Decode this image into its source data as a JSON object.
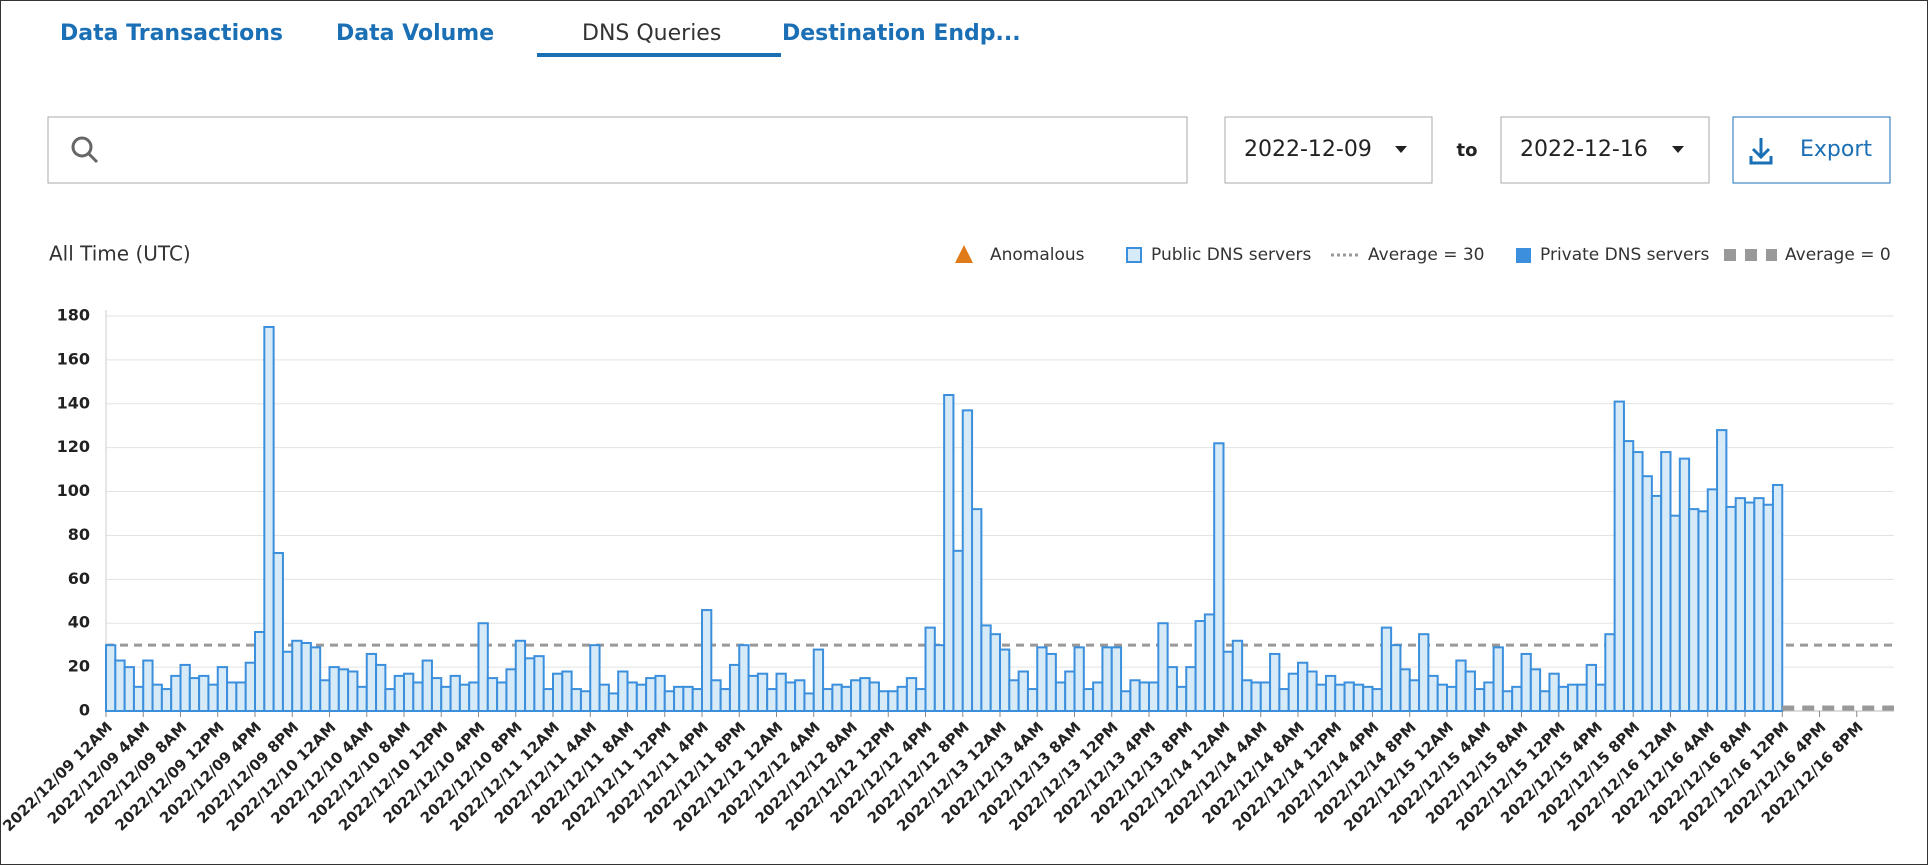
{
  "tabs": [
    "Data Transactions",
    "Data Volume",
    "DNS Queries",
    "Destination Endp..."
  ],
  "date_from": "2022-12-09",
  "separator": "to",
  "date_to": "2022-12-16",
  "export": "Export",
  "chart_data": {
    "type": "bar",
    "subtitle": "All Time (UTC)",
    "legend_anomalous": "Anomalous",
    "series": [
      {
        "name": "Public DNS servers",
        "color": "#3b8fdc",
        "fill": "#d6eaf8",
        "average": 30,
        "average_label": "Average = 30",
        "values": [
          30,
          23,
          20,
          11,
          23,
          12,
          10,
          16,
          21,
          15,
          16,
          12,
          20,
          13,
          13,
          22,
          36,
          175,
          72,
          27,
          32,
          31,
          29,
          14,
          20,
          19,
          18,
          11,
          26,
          21,
          10,
          16,
          17,
          13,
          23,
          15,
          11,
          16,
          12,
          13,
          40,
          15,
          13,
          19,
          32,
          24,
          25,
          10,
          17,
          18,
          10,
          9,
          30,
          12,
          8,
          18,
          13,
          12,
          15,
          16,
          9,
          11,
          11,
          10,
          46,
          14,
          10,
          21,
          30,
          16,
          17,
          10,
          17,
          13,
          14,
          8,
          28,
          10,
          12,
          11,
          14,
          15,
          13,
          9,
          9,
          11,
          15,
          10,
          38,
          30,
          144,
          73,
          137,
          92,
          39,
          35,
          28,
          14,
          18,
          10,
          29,
          26,
          13,
          18,
          29,
          10,
          13,
          29,
          29,
          9,
          14,
          13,
          13,
          40,
          20,
          11,
          20,
          41,
          44,
          122,
          27,
          32,
          14,
          13,
          13,
          26,
          10,
          17,
          22,
          18,
          12,
          16,
          12,
          13,
          12,
          11,
          10,
          38,
          30,
          19,
          14,
          35,
          16,
          12,
          11,
          23,
          18,
          10,
          13,
          29,
          9,
          11,
          26,
          19,
          9,
          17,
          11,
          12,
          12,
          21,
          12,
          35,
          141,
          123,
          118,
          107,
          98,
          118,
          89,
          115,
          92,
          91,
          101,
          128,
          93,
          97,
          95,
          97,
          94,
          103,
          null,
          null,
          null,
          null,
          null,
          null,
          null,
          null,
          null,
          null,
          null,
          null
        ]
      },
      {
        "name": "Private DNS servers",
        "color": "#3b8fdc",
        "average": 0,
        "average_label": "Average = 0"
      }
    ],
    "categories": [
      "2022/12/09 12AM",
      null,
      null,
      null,
      "2022/12/09 4AM",
      null,
      null,
      null,
      "2022/12/09 8AM",
      null,
      null,
      null,
      "2022/12/09 12PM",
      null,
      null,
      null,
      "2022/12/09 4PM",
      null,
      null,
      null,
      "2022/12/09 8PM",
      null,
      null,
      null,
      "2022/12/10 12AM",
      null,
      null,
      null,
      "2022/12/10 4AM",
      null,
      null,
      null,
      "2022/12/10 8AM",
      null,
      null,
      null,
      "2022/12/10 12PM",
      null,
      null,
      null,
      "2022/12/10 4PM",
      null,
      null,
      null,
      "2022/12/10 8PM",
      null,
      null,
      null,
      "2022/12/11 12AM",
      null,
      null,
      null,
      "2022/12/11 4AM",
      null,
      null,
      null,
      "2022/12/11 8AM",
      null,
      null,
      null,
      "2022/12/11 12PM",
      null,
      null,
      null,
      "2022/12/11 4PM",
      null,
      null,
      null,
      "2022/12/11 8PM",
      null,
      null,
      null,
      "2022/12/12 12AM",
      null,
      null,
      null,
      "2022/12/12 4AM",
      null,
      null,
      null,
      "2022/12/12 8AM",
      null,
      null,
      null,
      "2022/12/12 12PM",
      null,
      null,
      null,
      "2022/12/12 4PM",
      null,
      null,
      null,
      "2022/12/12 8PM",
      null,
      null,
      null,
      "2022/12/13 12AM",
      null,
      null,
      null,
      "2022/12/13 4AM",
      null,
      null,
      null,
      "2022/12/13 8AM",
      null,
      null,
      null,
      "2022/12/13 12PM",
      null,
      null,
      null,
      "2022/12/13 4PM",
      null,
      null,
      null,
      "2022/12/13 8PM",
      null,
      null,
      null,
      "2022/12/14 12AM",
      null,
      null,
      null,
      "2022/12/14 4AM",
      null,
      null,
      null,
      "2022/12/14 8AM",
      null,
      null,
      null,
      "2022/12/14 12PM",
      null,
      null,
      null,
      "2022/12/14 4PM",
      null,
      null,
      null,
      "2022/12/14 8PM",
      null,
      null,
      null,
      "2022/12/15 12AM",
      null,
      null,
      null,
      "2022/12/15 4AM",
      null,
      null,
      null,
      "2022/12/15 8AM",
      null,
      null,
      null,
      "2022/12/15 12PM",
      null,
      null,
      null,
      "2022/12/15 4PM",
      null,
      null,
      null,
      "2022/12/15 8PM",
      null,
      null,
      null,
      "2022/12/16 12AM",
      null,
      null,
      null,
      "2022/12/16 4AM",
      null,
      null,
      null,
      "2022/12/16 8AM",
      null,
      null,
      null,
      "2022/12/16 12PM",
      null,
      null,
      null,
      "2022/12/16 4PM",
      null,
      null,
      null,
      "2022/12/16 8PM",
      null,
      null,
      null
    ],
    "ylim": [
      0,
      180
    ],
    "yticks": [
      0,
      20,
      40,
      60,
      80,
      100,
      120,
      140,
      160,
      180
    ],
    "grid": true
  }
}
